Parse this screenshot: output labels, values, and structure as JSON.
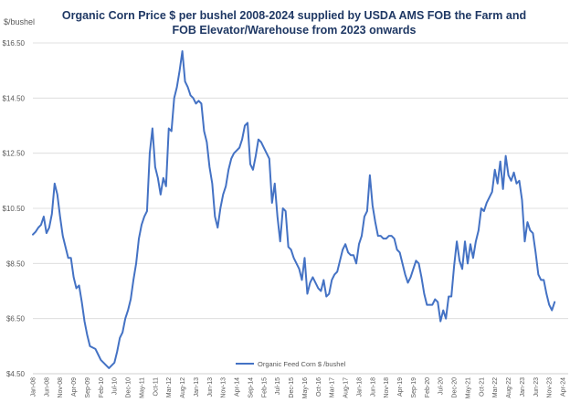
{
  "chart_data": {
    "type": "line",
    "title_line1": "Organic Corn Price $ per bushel 2008-2024 supplied by USDA AMS  FOB the Farm and",
    "title_line2": "FOB Elevator/Warehouse from 2023 onwards",
    "ylabel": "$/bushel",
    "ylim": [
      4.5,
      16.5
    ],
    "yticks": [
      "$4.50",
      "$6.50",
      "$8.50",
      "$10.50",
      "$12.50",
      "$14.50",
      "$16.50"
    ],
    "ytick_values": [
      4.5,
      6.5,
      8.5,
      10.5,
      12.5,
      14.5,
      16.5
    ],
    "xticks": [
      "Jan-08",
      "Jun-08",
      "Nov-08",
      "Apr-09",
      "Sep-09",
      "Feb-10",
      "Jul-10",
      "Dec-10",
      "May-11",
      "Oct-11",
      "Mar-12",
      "Aug-12",
      "Jan-13",
      "Jun-13",
      "Nov-13",
      "Apr-14",
      "Sep-14",
      "Feb-15",
      "Jul-15",
      "Dec-15",
      "May-16",
      "Oct-16",
      "Mar-17",
      "Aug-17",
      "Jan-18",
      "Jun-18",
      "Nov-18",
      "Apr-19",
      "Sep-19",
      "Feb-20",
      "Jul-20",
      "Dec-20",
      "May-21",
      "Oct-21",
      "Mar-22",
      "Aug-22",
      "Jan-23",
      "Jun-23",
      "Nov-23",
      "Apr-24"
    ],
    "x_months_per_tick": 5,
    "grid": true,
    "legend": "bottom",
    "series": [
      {
        "name": "Organic Feed Corn $ /bushel",
        "color": "#4472c4",
        "values": [
          9.55,
          9.65,
          9.8,
          9.9,
          10.2,
          9.6,
          9.8,
          10.3,
          11.4,
          11.0,
          10.2,
          9.5,
          9.1,
          8.7,
          8.7,
          8.0,
          7.6,
          7.7,
          7.1,
          6.4,
          5.9,
          5.5,
          5.45,
          5.4,
          5.2,
          5.0,
          4.9,
          4.8,
          4.7,
          4.8,
          4.9,
          5.3,
          5.8,
          6.0,
          6.5,
          6.8,
          7.2,
          7.9,
          8.5,
          9.4,
          9.9,
          10.2,
          10.4,
          12.5,
          13.4,
          12.0,
          11.6,
          11.0,
          11.6,
          11.3,
          13.4,
          13.3,
          14.5,
          14.9,
          15.5,
          16.2,
          15.1,
          14.9,
          14.6,
          14.5,
          14.3,
          14.4,
          14.3,
          13.3,
          12.9,
          12.0,
          11.4,
          10.2,
          9.8,
          10.5,
          11.0,
          11.3,
          11.9,
          12.3,
          12.5,
          12.6,
          12.7,
          13.0,
          13.5,
          13.6,
          12.1,
          11.9,
          12.4,
          13.0,
          12.9,
          12.7,
          12.5,
          12.3,
          10.7,
          11.4,
          10.2,
          9.3,
          10.5,
          10.4,
          9.1,
          9.0,
          8.7,
          8.5,
          8.3,
          7.9,
          8.7,
          7.4,
          7.8,
          8.0,
          7.8,
          7.6,
          7.5,
          7.9,
          7.3,
          7.4,
          7.9,
          8.1,
          8.2,
          8.6,
          9.0,
          9.2,
          8.9,
          8.8,
          8.8,
          8.5,
          9.2,
          9.5,
          10.2,
          10.4,
          11.7,
          10.6,
          10.0,
          9.5,
          9.5,
          9.4,
          9.4,
          9.5,
          9.5,
          9.4,
          9.0,
          8.9,
          8.5,
          8.1,
          7.8,
          8.0,
          8.3,
          8.6,
          8.5,
          8.0,
          7.4,
          7.0,
          7.0,
          7.0,
          7.2,
          7.1,
          6.4,
          6.8,
          6.5,
          7.3,
          7.3,
          8.4,
          9.3,
          8.6,
          8.3,
          9.3,
          8.5,
          9.2,
          8.7,
          9.3,
          9.7,
          10.5,
          10.4,
          10.7,
          10.9,
          11.1,
          11.9,
          11.4,
          12.2,
          11.2,
          12.4,
          11.7,
          11.5,
          11.8,
          11.4,
          11.5,
          10.8,
          9.3,
          10.0,
          9.7,
          9.6,
          8.9,
          8.1,
          7.9,
          7.9,
          7.4,
          7.0,
          6.8,
          7.1
        ]
      }
    ]
  }
}
